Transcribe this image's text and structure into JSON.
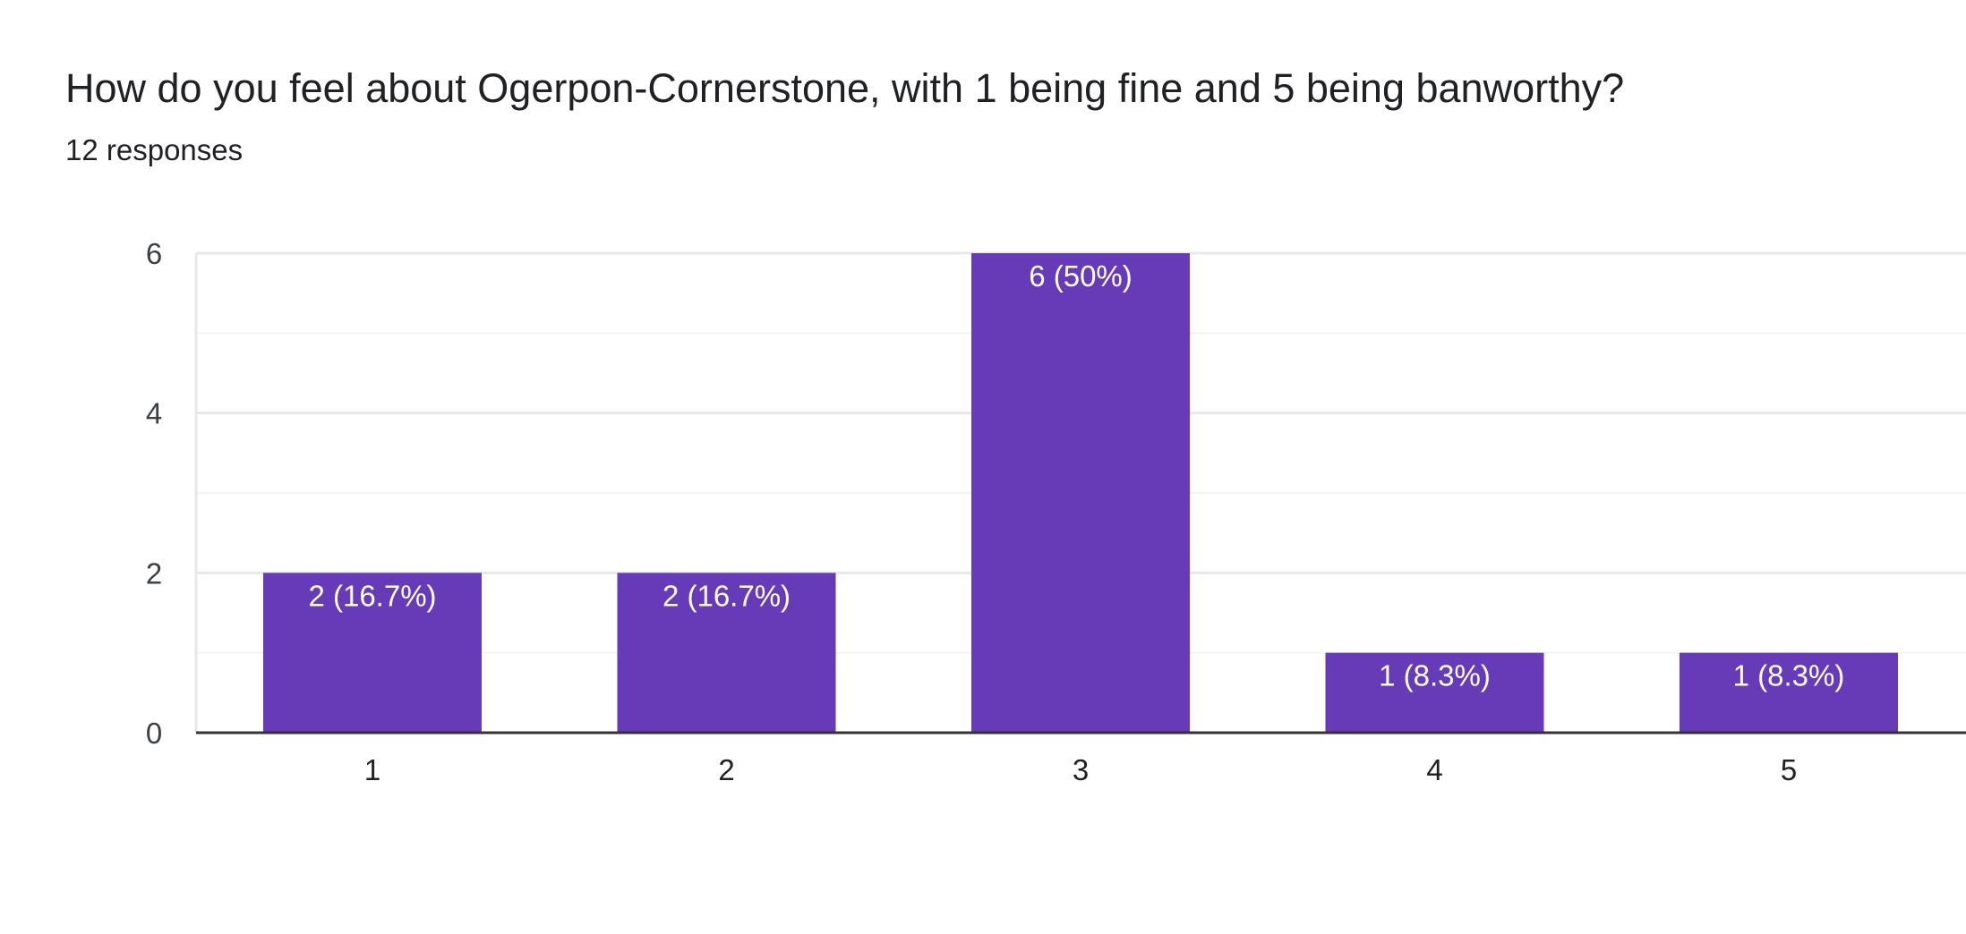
{
  "question": {
    "title": "How do you feel about Ogerpon-Cornerstone, with 1 being fine and 5 being banworthy?",
    "response_count": "12 responses"
  },
  "chart_data": {
    "type": "bar",
    "title": "How do you feel about Ogerpon-Cornerstone, with 1 being fine and 5 being banworthy?",
    "subtitle": "12 responses",
    "categories": [
      "1",
      "2",
      "3",
      "4",
      "5"
    ],
    "values": [
      2,
      2,
      6,
      1,
      1
    ],
    "data_labels": [
      "2 (16.7%)",
      "2 (16.7%)",
      "6 (50%)",
      "1 (8.3%)",
      "1 (8.3%)"
    ],
    "xlabel": "",
    "ylabel": "",
    "ylim": [
      0,
      6
    ],
    "yticks": [
      0,
      2,
      4,
      6
    ],
    "grid": true,
    "legend": "none",
    "bar_color": "#673ab7"
  }
}
